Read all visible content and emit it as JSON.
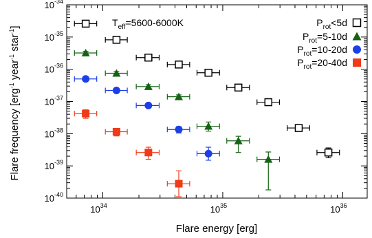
{
  "chart_data": {
    "type": "scatter",
    "x_scale": "log",
    "y_scale": "log",
    "xlim": [
      5e+33,
      1.6e+36
    ],
    "ylim": [
      1e-40,
      1e-34
    ],
    "xlabel": "Flare energy [erg]",
    "ylabel_parts": [
      "Flare frequency [erg",
      "-1",
      " year",
      "-1",
      " star",
      "-1",
      "]"
    ],
    "annotation": {
      "base": "T",
      "sub": "eff",
      "rest": "=5600-6000K"
    },
    "x_ticks": [
      {
        "base": "10",
        "exp": "34",
        "value": 1e+34
      },
      {
        "base": "10",
        "exp": "35",
        "value": 1e+35
      },
      {
        "base": "10",
        "exp": "36",
        "value": 1e+36
      }
    ],
    "y_ticks": [
      {
        "base": "10",
        "exp": "-34",
        "value": 1e-34
      },
      {
        "base": "10",
        "exp": "-35",
        "value": 1e-35
      },
      {
        "base": "10",
        "exp": "-36",
        "value": 1e-36
      },
      {
        "base": "10",
        "exp": "-37",
        "value": 1e-37
      },
      {
        "base": "10",
        "exp": "-38",
        "value": 1e-38
      },
      {
        "base": "10",
        "exp": "-39",
        "value": 1e-39
      },
      {
        "base": "10",
        "exp": "-40",
        "value": 1e-40
      }
    ],
    "legend_position": "top-right",
    "series": [
      {
        "name": "P_rot<5d",
        "legend": {
          "base": "P",
          "sub": "rot",
          "rest": "<5d"
        },
        "marker": "open-square",
        "color": "#000000",
        "points": [
          {
            "x": 7.2e+33,
            "y": 2.6e-35,
            "xerr": [
              5.8e+33,
              8.9e+33
            ],
            "yerr": [
              2.3e-35,
              2.9e-35
            ]
          },
          {
            "x": 1.3e+34,
            "y": 8.2e-36,
            "xerr": [
              1.05e+34,
              1.6e+34
            ],
            "yerr": [
              7.6e-36,
              8.8e-36
            ]
          },
          {
            "x": 2.4e+34,
            "y": 2.3e-36,
            "xerr": [
              1.9e+34,
              2.95e+34
            ],
            "yerr": [
              2.1e-36,
              2.5e-36
            ]
          },
          {
            "x": 4.3e+34,
            "y": 1.4e-36,
            "xerr": [
              3.45e+34,
              5.3e+34
            ],
            "yerr": [
              1.3e-36,
              1.5e-36
            ]
          },
          {
            "x": 7.6e+34,
            "y": 7.8e-37,
            "xerr": [
              6.1e+34,
              9.4e+34
            ],
            "yerr": [
              7.1e-37,
              8.5e-37
            ]
          },
          {
            "x": 1.35e+35,
            "y": 2.7e-37,
            "xerr": [
              1.08e+35,
              1.67e+35
            ],
            "yerr": [
              2.5e-37,
              2.9e-37
            ]
          },
          {
            "x": 2.4e+35,
            "y": 9.5e-38,
            "xerr": [
              1.93e+35,
              2.97e+35
            ],
            "yerr": [
              8.7e-38,
              1.03e-37
            ]
          },
          {
            "x": 4.3e+35,
            "y": 1.5e-38,
            "xerr": [
              3.45e+35,
              5.3e+35
            ],
            "yerr": [
              1.25e-38,
              1.75e-38
            ]
          },
          {
            "x": 7.6e+35,
            "y": 2.6e-39,
            "xerr": [
              6.1e+35,
              9.4e+35
            ],
            "yerr": [
              1.8e-39,
              3.6e-39
            ]
          }
        ]
      },
      {
        "name": "P_rot=5-10d",
        "legend": {
          "base": "P",
          "sub": "rot",
          "rest": "=5-10d"
        },
        "marker": "triangle",
        "color": "#156215",
        "points": [
          {
            "x": 7.2e+33,
            "y": 3.2e-36,
            "xerr": [
              5.8e+33,
              8.9e+33
            ],
            "yerr": [
              2.8e-36,
              3.6e-36
            ]
          },
          {
            "x": 1.3e+34,
            "y": 7.5e-37,
            "xerr": [
              1.05e+34,
              1.6e+34
            ],
            "yerr": [
              6.5e-37,
              8.5e-37
            ]
          },
          {
            "x": 2.4e+34,
            "y": 2.9e-37,
            "xerr": [
              1.9e+34,
              2.95e+34
            ],
            "yerr": [
              2.5e-37,
              3.3e-37
            ]
          },
          {
            "x": 4.3e+34,
            "y": 1.4e-37,
            "xerr": [
              3.45e+34,
              5.3e+34
            ],
            "yerr": [
              1.2e-37,
              1.6e-37
            ]
          },
          {
            "x": 7.6e+34,
            "y": 1.7e-38,
            "xerr": [
              6.1e+34,
              9.4e+34
            ],
            "yerr": [
              1.2e-38,
              2.3e-38
            ]
          },
          {
            "x": 1.35e+35,
            "y": 6e-39,
            "xerr": [
              1.08e+35,
              1.67e+35
            ],
            "yerr": [
              2.6e-39,
              8.3e-39
            ]
          },
          {
            "x": 2.4e+35,
            "y": 1.6e-39,
            "xerr": [
              1.93e+35,
              2.97e+35
            ],
            "yerr": [
              1.8e-40,
              2.7e-39
            ]
          }
        ]
      },
      {
        "name": "P_rot=10-20d",
        "legend": {
          "base": "P",
          "sub": "rot",
          "rest": "=10-20d"
        },
        "marker": "circle",
        "color": "#1c3fe6",
        "points": [
          {
            "x": 7.2e+33,
            "y": 5e-37,
            "xerr": [
              5.8e+33,
              8.9e+33
            ],
            "yerr": [
              4.5e-37,
              5.5e-37
            ]
          },
          {
            "x": 1.3e+34,
            "y": 2.2e-37,
            "xerr": [
              1.05e+34,
              1.6e+34
            ],
            "yerr": [
              1.95e-37,
              2.45e-37
            ]
          },
          {
            "x": 2.4e+34,
            "y": 7.5e-38,
            "xerr": [
              1.9e+34,
              2.95e+34
            ],
            "yerr": [
              6.5e-38,
              8.5e-38
            ]
          },
          {
            "x": 4.3e+34,
            "y": 1.35e-38,
            "xerr": [
              3.45e+34,
              5.3e+34
            ],
            "yerr": [
              1.05e-38,
              1.65e-38
            ]
          },
          {
            "x": 7.6e+34,
            "y": 2.4e-39,
            "xerr": [
              6.1e+34,
              9.4e+34
            ],
            "yerr": [
              1.5e-39,
              3.8e-39
            ]
          }
        ]
      },
      {
        "name": "P_rot=20-40d",
        "legend": {
          "base": "P",
          "sub": "rot",
          "rest": "=20-40d"
        },
        "marker": "filled-square",
        "color": "#ef3b1a",
        "points": [
          {
            "x": 7.2e+33,
            "y": 4.2e-38,
            "xerr": [
              5.8e+33,
              8.9e+33
            ],
            "yerr": [
              3e-38,
              5.5e-38
            ]
          },
          {
            "x": 1.3e+34,
            "y": 1.15e-38,
            "xerr": [
              1.05e+34,
              1.6e+34
            ],
            "yerr": [
              8.5e-39,
              1.45e-38
            ]
          },
          {
            "x": 2.4e+34,
            "y": 2.6e-39,
            "xerr": [
              1.9e+34,
              2.95e+34
            ],
            "yerr": [
              1.6e-39,
              3.8e-39
            ]
          },
          {
            "x": 4.3e+34,
            "y": 2.8e-40,
            "xerr": [
              3.45e+34,
              5.3e+34
            ],
            "yerr": [
              1.1e-40,
              7e-40
            ]
          }
        ]
      }
    ]
  }
}
